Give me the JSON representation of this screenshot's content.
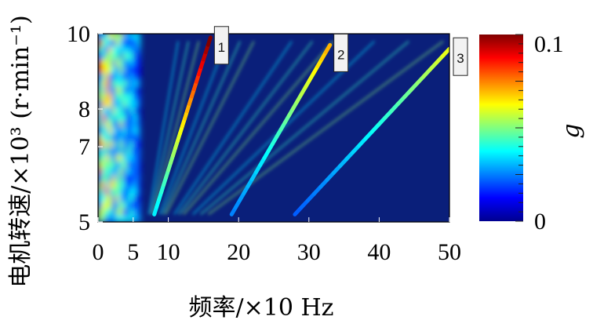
{
  "chart_data": {
    "type": "heatmap",
    "xlabel": "频率/×10 Hz",
    "ylabel": "电机转速/×10³ (r·min⁻¹)",
    "x_ticks": [
      "0",
      "5",
      "10",
      "20",
      "30",
      "40",
      "50"
    ],
    "x_tick_values": [
      0,
      5,
      10,
      20,
      30,
      40,
      50
    ],
    "y_ticks": [
      "5",
      "7",
      "8",
      "10"
    ],
    "y_tick_values": [
      5,
      7,
      8,
      10
    ],
    "xlim": [
      0,
      50
    ],
    "ylim": [
      5,
      10
    ],
    "colorbar": {
      "label": "g",
      "min_label": "0",
      "max_label": "0.1",
      "range": [
        0,
        0.1
      ],
      "colors": [
        "#00008f",
        "#0000ff",
        "#0080ff",
        "#00ffff",
        "#80ff80",
        "#ffff00",
        "#ff8000",
        "#ff0000",
        "#800000"
      ]
    },
    "background_color": "#0a1f7a",
    "order_lines": [
      {
        "label": "1",
        "x": [
          8,
          16
        ],
        "y": [
          5.2,
          9.9
        ],
        "peak_g": 0.1
      },
      {
        "label": "2",
        "x": [
          19,
          33
        ],
        "y": [
          5.2,
          9.7
        ],
        "peak_g": 0.07
      },
      {
        "label": "3",
        "x": [
          28,
          50
        ],
        "y": [
          5.2,
          9.6
        ],
        "peak_g": 0.06
      }
    ],
    "low_frequency_band": {
      "x_range": [
        0,
        6
      ],
      "y_range": [
        5,
        10
      ],
      "typical_g": 0.05
    }
  }
}
